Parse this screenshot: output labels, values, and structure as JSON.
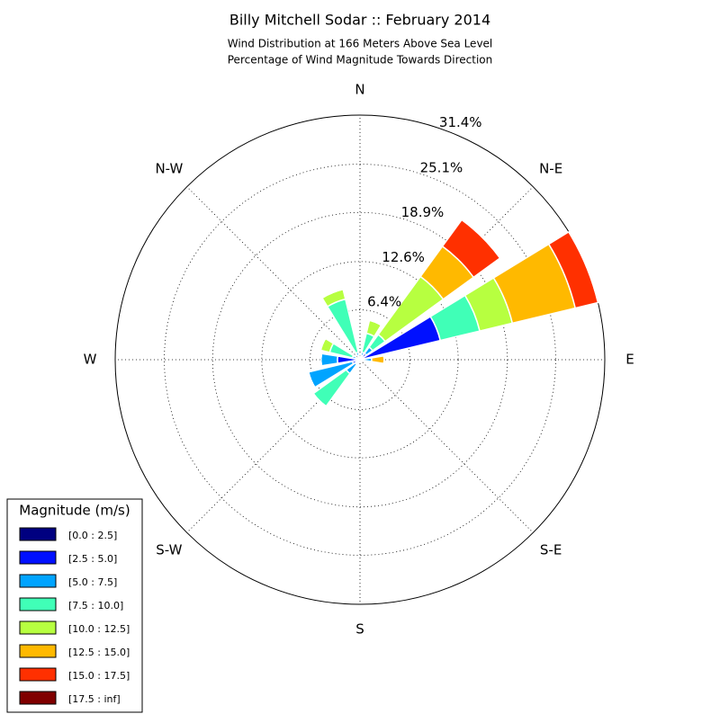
{
  "chart_data": {
    "type": "windrose",
    "title": "Billy Mitchell Sodar :: February 2014",
    "subtitle": [
      "Wind Distribution at 166 Meters Above Sea Level",
      "Percentage of Wind Magnitude Towards Direction"
    ],
    "categories": [
      "N",
      null,
      "N-E",
      null,
      "E",
      null,
      "S-E",
      null,
      "S",
      null,
      "S-W",
      null,
      "W",
      null,
      "N-W",
      null
    ],
    "rlim": [
      0,
      31.4
    ],
    "rticks": [
      {
        "value": 6.4,
        "label": "6.4%"
      },
      {
        "value": 12.6,
        "label": "12.6%"
      },
      {
        "value": 18.9,
        "label": "18.9%"
      },
      {
        "value": 25.1,
        "label": "25.1%"
      },
      {
        "value": 31.4,
        "label": "31.4%"
      }
    ],
    "legend_title": "Magnitude (m/s)",
    "legend_position": "lower left",
    "series": [
      {
        "name": "[0.0 : 2.5]",
        "color": "#000080",
        "values": [
          0,
          0.2,
          0.2,
          0.3,
          0,
          0,
          0,
          0,
          0,
          0,
          0.2,
          0.2,
          0.3,
          0.2,
          0,
          0.2
        ]
      },
      {
        "name": "[2.5 : 5.0]",
        "color": "#0010ff",
        "values": [
          0,
          0.3,
          0.8,
          10.3,
          0.5,
          0,
          0,
          0,
          0,
          0,
          0.5,
          0.8,
          2.6,
          0.3,
          0,
          0.3
        ]
      },
      {
        "name": "[5.0 : 7.5]",
        "color": "#00a4ff",
        "values": [
          0,
          0.5,
          1,
          0,
          1,
          0,
          0,
          0,
          0,
          0,
          1.5,
          5.8,
          2.1,
          0.5,
          0,
          0.5
        ]
      },
      {
        "name": "[7.5 : 10.0]",
        "color": "#40ffb7",
        "values": [
          0,
          2.5,
          2,
          5.2,
          0,
          0,
          0,
          0,
          0,
          0,
          5.2,
          0,
          0,
          3,
          0,
          7
        ]
      },
      {
        "name": "[10.0 : 12.5]",
        "color": "#b7ff40",
        "values": [
          0,
          1.7,
          9.2,
          4.3,
          0,
          0,
          0,
          0,
          0,
          0,
          0,
          0,
          0,
          1.2,
          0,
          1.3
        ]
      },
      {
        "name": "[12.5 : 15.0]",
        "color": "#ffb900",
        "values": [
          0,
          0,
          4.8,
          8.3,
          1.6,
          0,
          0,
          0,
          0,
          0,
          0,
          0,
          0,
          0,
          0,
          0
        ]
      },
      {
        "name": "[15.0 : 17.5]",
        "color": "#ff3000",
        "values": [
          0,
          0,
          4.2,
          3.0,
          0,
          0,
          0,
          0,
          0,
          0,
          0,
          0,
          0,
          0,
          0,
          0
        ]
      },
      {
        "name": "[17.5 : inf]",
        "color": "#800000",
        "values": [
          0,
          0,
          0,
          0,
          0,
          0,
          0,
          0,
          0,
          0,
          0,
          0,
          0,
          0,
          0,
          0
        ]
      }
    ]
  }
}
